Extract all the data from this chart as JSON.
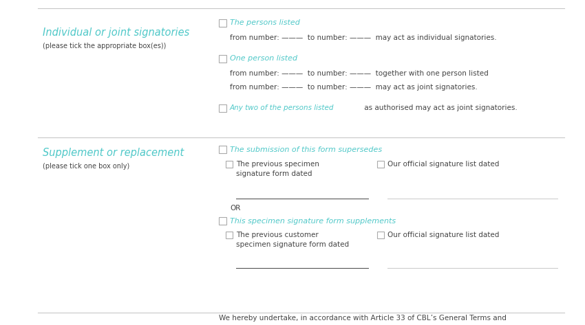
{
  "bg_color": "#ffffff",
  "teal_color": "#4fc8c8",
  "dark_color": "#444444",
  "line_color": "#c8c8c8",
  "checkbox_color": "#aaaaaa",
  "section1_title": "Individual or joint signatories",
  "section1_subtitle": "(please tick the appropriate box(es))",
  "section2_title": "Supplement or replacement",
  "section2_subtitle": "(please tick one box only)",
  "title_fontsize": 10.5,
  "subtitle_fontsize": 7.0,
  "body_fontsize": 7.5,
  "teal_label_fontsize": 8.0,
  "bottom_text": "We hereby undertake, in accordance with Article 33 of CBL’s General Terms and"
}
